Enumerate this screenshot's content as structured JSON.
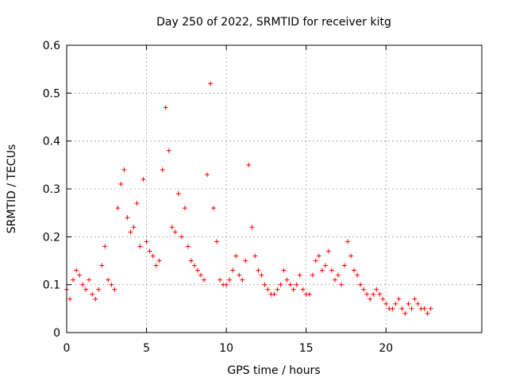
{
  "chart_data": {
    "type": "scatter",
    "title": "Day 250 of 2022, SRMTID for receiver kitg",
    "xlabel": "GPS time / hours",
    "ylabel": "SRMTID / TECUs",
    "xlim": [
      0,
      26
    ],
    "ylim": [
      0,
      0.6
    ],
    "xticks": [
      0,
      5,
      10,
      15,
      20
    ],
    "xtick_labels": [
      "0",
      "5",
      "10",
      "15",
      "20"
    ],
    "yticks": [
      0,
      0.1,
      0.2,
      0.3,
      0.4,
      0.5,
      0.6
    ],
    "ytick_labels": [
      "0",
      "0.1",
      "0.2",
      "0.3",
      "0.4",
      "0.5",
      "0.6"
    ],
    "grid": true,
    "marker": "+",
    "color": "#ff0000",
    "series": [
      {
        "name": "SRMTID",
        "x": [
          0.0,
          0.2,
          0.4,
          0.6,
          0.8,
          1.0,
          1.2,
          1.4,
          1.6,
          1.8,
          2.0,
          2.2,
          2.4,
          2.6,
          2.8,
          3.0,
          3.2,
          3.4,
          3.6,
          3.8,
          4.0,
          4.2,
          4.4,
          4.6,
          4.8,
          5.0,
          5.2,
          5.4,
          5.6,
          5.8,
          6.0,
          6.2,
          6.4,
          6.6,
          6.8,
          7.0,
          7.2,
          7.4,
          7.6,
          7.8,
          8.0,
          8.2,
          8.4,
          8.6,
          8.8,
          9.0,
          9.2,
          9.4,
          9.6,
          9.8,
          10.0,
          10.2,
          10.4,
          10.6,
          10.8,
          11.0,
          11.2,
          11.4,
          11.6,
          11.8,
          12.0,
          12.2,
          12.4,
          12.6,
          12.8,
          13.0,
          13.2,
          13.4,
          13.6,
          13.8,
          14.0,
          14.2,
          14.4,
          14.6,
          14.8,
          15.0,
          15.2,
          15.4,
          15.6,
          15.8,
          16.0,
          16.2,
          16.4,
          16.6,
          16.8,
          17.0,
          17.2,
          17.4,
          17.6,
          17.8,
          18.0,
          18.2,
          18.4,
          18.6,
          18.8,
          19.0,
          19.2,
          19.4,
          19.6,
          19.8,
          20.0,
          20.2,
          20.4,
          20.6,
          20.8,
          21.0,
          21.2,
          21.4,
          21.6,
          21.8,
          22.0,
          22.2,
          22.4,
          22.6,
          22.8
        ],
        "y": [
          0.09,
          0.07,
          0.11,
          0.13,
          0.12,
          0.1,
          0.09,
          0.11,
          0.08,
          0.07,
          0.09,
          0.14,
          0.18,
          0.11,
          0.1,
          0.09,
          0.26,
          0.31,
          0.34,
          0.24,
          0.21,
          0.22,
          0.27,
          0.18,
          0.32,
          0.19,
          0.17,
          0.16,
          0.14,
          0.15,
          0.34,
          0.47,
          0.38,
          0.22,
          0.21,
          0.29,
          0.2,
          0.26,
          0.18,
          0.15,
          0.14,
          0.13,
          0.12,
          0.11,
          0.33,
          0.52,
          0.26,
          0.19,
          0.11,
          0.1,
          0.1,
          0.11,
          0.13,
          0.16,
          0.12,
          0.11,
          0.15,
          0.35,
          0.22,
          0.16,
          0.13,
          0.12,
          0.1,
          0.09,
          0.08,
          0.08,
          0.09,
          0.1,
          0.13,
          0.11,
          0.1,
          0.09,
          0.1,
          0.12,
          0.09,
          0.08,
          0.08,
          0.12,
          0.15,
          0.16,
          0.13,
          0.14,
          0.17,
          0.13,
          0.11,
          0.12,
          0.1,
          0.14,
          0.19,
          0.16,
          0.13,
          0.12,
          0.1,
          0.09,
          0.08,
          0.07,
          0.08,
          0.09,
          0.08,
          0.07,
          0.06,
          0.05,
          0.05,
          0.06,
          0.07,
          0.05,
          0.04,
          0.06,
          0.05,
          0.07,
          0.06,
          0.05,
          0.05,
          0.04,
          0.05
        ]
      }
    ]
  }
}
